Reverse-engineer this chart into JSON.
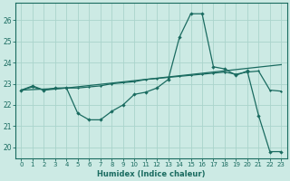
{
  "xlabel": "Humidex (Indice chaleur)",
  "bg_color": "#cceae4",
  "grid_color": "#aad4cc",
  "line_color": "#1a6b60",
  "xlim": [
    -0.5,
    23.5
  ],
  "ylim": [
    19.5,
    26.8
  ],
  "xticks": [
    0,
    1,
    2,
    3,
    4,
    5,
    6,
    7,
    8,
    9,
    10,
    11,
    12,
    13,
    14,
    15,
    16,
    17,
    18,
    19,
    20,
    21,
    22,
    23
  ],
  "yticks": [
    20,
    21,
    22,
    23,
    24,
    25,
    26
  ],
  "series1_x": [
    0,
    1,
    2,
    3,
    4,
    5,
    6,
    7,
    8,
    9,
    10,
    11,
    12,
    13,
    14,
    15,
    16,
    17,
    18,
    19,
    20,
    21,
    22,
    23
  ],
  "series1_y": [
    22.7,
    22.9,
    22.7,
    22.8,
    22.8,
    21.6,
    21.3,
    21.3,
    21.7,
    22.0,
    22.5,
    22.6,
    22.8,
    23.2,
    25.2,
    26.3,
    26.3,
    23.8,
    23.7,
    23.4,
    23.6,
    21.5,
    19.8,
    19.8
  ],
  "series2_x": [
    0,
    1,
    2,
    3,
    4,
    5,
    6,
    7,
    8,
    9,
    10,
    11,
    12,
    13,
    14,
    15,
    16,
    17,
    18,
    19,
    20,
    21,
    22,
    23
  ],
  "series2_y": [
    22.7,
    22.85,
    22.7,
    22.75,
    22.8,
    22.8,
    22.85,
    22.9,
    23.0,
    23.05,
    23.1,
    23.2,
    23.25,
    23.3,
    23.35,
    23.4,
    23.45,
    23.5,
    23.55,
    23.45,
    23.55,
    23.6,
    22.7,
    22.65
  ],
  "series3_x": [
    0,
    4,
    23
  ],
  "series3_y": [
    22.7,
    22.8,
    23.9
  ]
}
